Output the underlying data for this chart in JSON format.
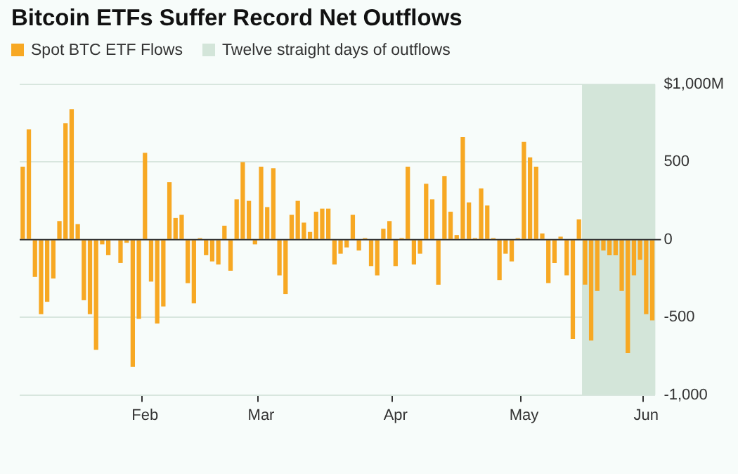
{
  "chart_data": {
    "type": "bar",
    "title": "Bitcoin ETFs Suffer Record Net Outflows",
    "categories": [
      null,
      null,
      null,
      null,
      null,
      null,
      null,
      null,
      null,
      null,
      null,
      null,
      null,
      null,
      null,
      null,
      null,
      null,
      null,
      null,
      "Feb",
      null,
      null,
      null,
      null,
      null,
      null,
      null,
      null,
      null,
      null,
      null,
      null,
      null,
      null,
      null,
      null,
      null,
      null,
      "Mar",
      null,
      null,
      null,
      null,
      null,
      null,
      null,
      null,
      null,
      null,
      null,
      null,
      null,
      null,
      null,
      null,
      null,
      null,
      null,
      null,
      null,
      "Apr",
      null,
      null,
      null,
      null,
      null,
      null,
      null,
      null,
      null,
      null,
      null,
      null,
      null,
      null,
      null,
      null,
      null,
      null,
      null,
      null,
      "May",
      null,
      null,
      null,
      null,
      null,
      null,
      null,
      null,
      null,
      null,
      null,
      null,
      null,
      null,
      null,
      null,
      null,
      null,
      null,
      "Jun",
      null
    ],
    "series": [
      {
        "name": "Spot BTC ETF Flows",
        "color": "#f7a823",
        "values": [
          470,
          710,
          -240,
          -480,
          -400,
          -250,
          120,
          750,
          840,
          100,
          -390,
          -480,
          -710,
          -30,
          -100,
          0,
          -150,
          -20,
          -820,
          -510,
          560,
          -270,
          -540,
          -430,
          370,
          140,
          160,
          -280,
          -410,
          10,
          -100,
          -140,
          -160,
          90,
          -200,
          260,
          500,
          250,
          -30,
          470,
          210,
          460,
          -230,
          -350,
          160,
          250,
          110,
          50,
          180,
          200,
          200,
          -160,
          -90,
          -50,
          160,
          -70,
          10,
          -170,
          -230,
          70,
          120,
          -170,
          10,
          470,
          -160,
          -90,
          360,
          260,
          -290,
          410,
          180,
          30,
          660,
          240,
          10,
          330,
          220,
          10,
          -260,
          -90,
          -140,
          10,
          630,
          530,
          470,
          40,
          -280,
          -150,
          20,
          -230,
          -640,
          130,
          -290,
          -650,
          -330,
          -70,
          -100,
          -100,
          -330,
          -730,
          -230,
          -130,
          -480,
          -520
        ]
      }
    ],
    "annotations": [
      "Twelve straight days of outflows"
    ],
    "ylim": [
      -1000,
      1000
    ],
    "yticks": [
      {
        "value": -1000,
        "label": "-1,000"
      },
      {
        "value": -500,
        "label": "-500"
      },
      0,
      500,
      {
        "value": 1000,
        "label": "$1,000M"
      }
    ],
    "grid": "y",
    "legend": "top left"
  }
}
